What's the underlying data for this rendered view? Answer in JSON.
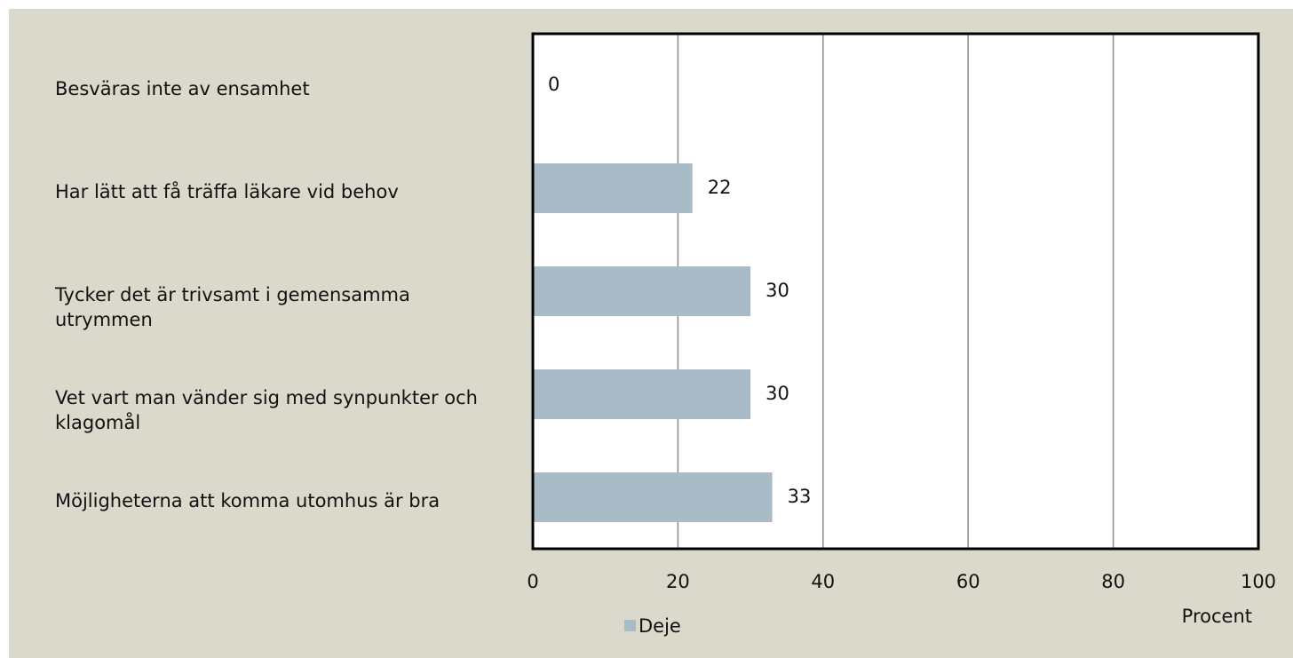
{
  "chart_data": {
    "type": "bar",
    "orientation": "horizontal",
    "categories": [
      "Besväras inte av ensamhet",
      "Har lätt att få träffa läkare vid behov",
      "Tycker det är trivsamt i gemensamma utrymmen",
      "Vet vart man vänder sig med synpunkter och klagomål",
      "Möjligheterna att komma utomhus är bra"
    ],
    "series": [
      {
        "name": "Deje",
        "color": "#a8bbc6",
        "values": [
          0,
          22,
          30,
          30,
          33
        ]
      }
    ],
    "xlim": [
      0,
      100
    ],
    "xticks": [
      0,
      20,
      40,
      60,
      80,
      100
    ],
    "xlabel": "Procent",
    "grid": true,
    "legend": "bottom"
  }
}
